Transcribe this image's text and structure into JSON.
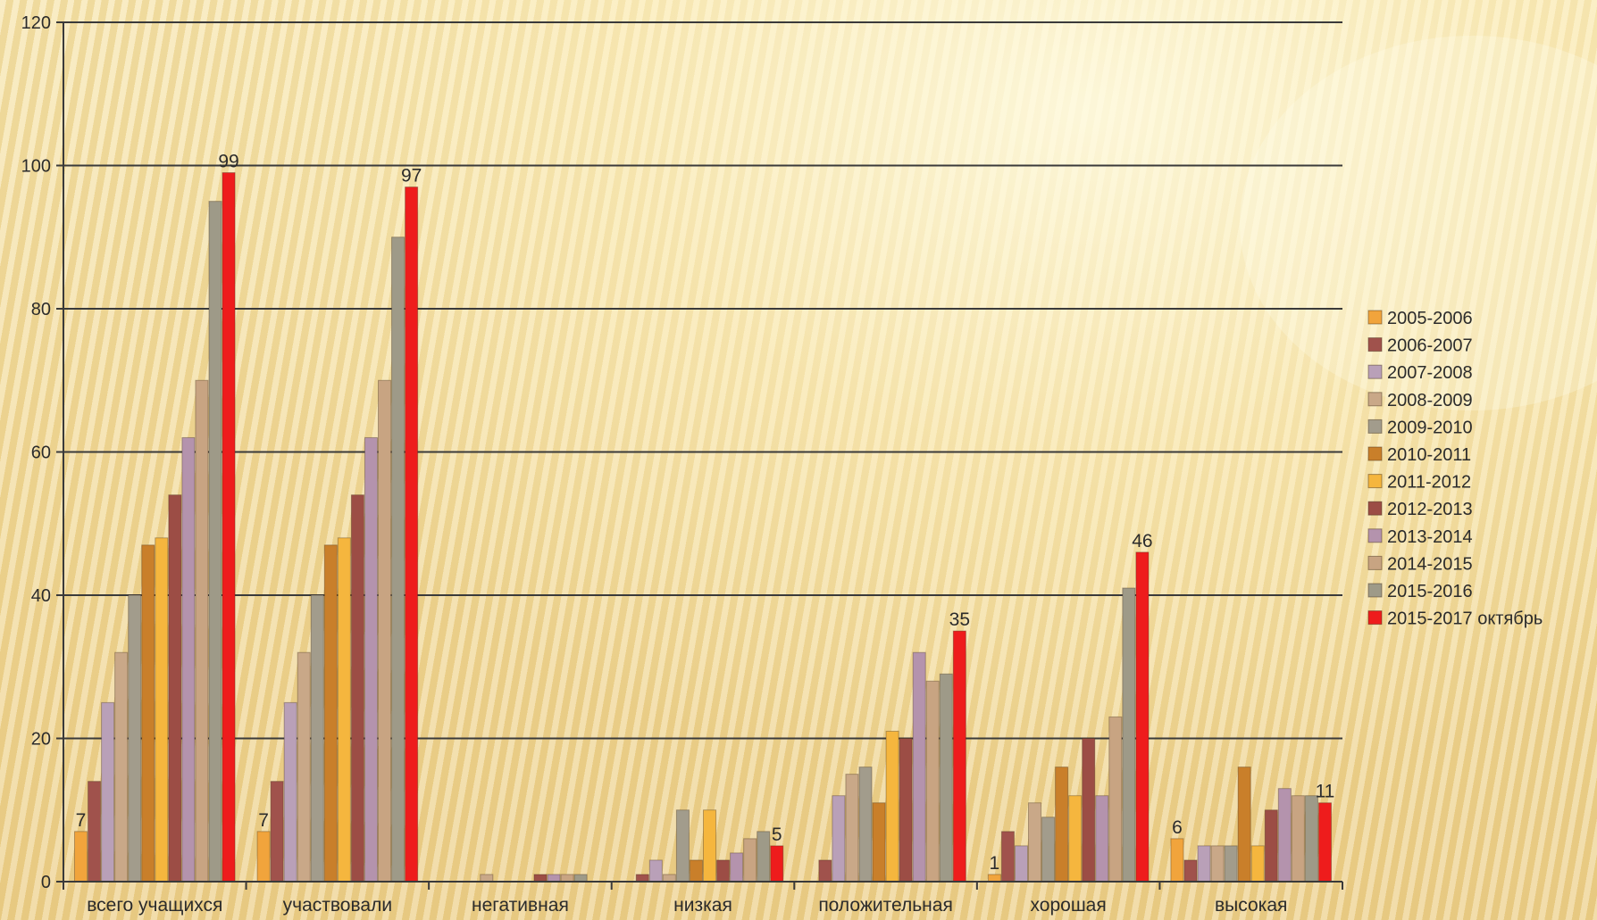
{
  "chart_data": {
    "type": "bar",
    "title": "",
    "xlabel": "",
    "ylabel": "",
    "ylim": [
      0,
      120
    ],
    "yticks": [
      0,
      20,
      40,
      60,
      80,
      100,
      120
    ],
    "grid": true,
    "legend_position": "right",
    "categories": [
      "всего учащихся",
      "участвовали",
      "негативная",
      "низкая",
      "положительная",
      "хорошая",
      "высокая"
    ],
    "series": [
      {
        "name": "2005-2006",
        "color": "#f1a43c",
        "values": [
          7,
          7,
          0,
          0,
          0,
          1,
          6
        ]
      },
      {
        "name": "2006-2007",
        "color": "#a0524c",
        "values": [
          14,
          14,
          0,
          1,
          3,
          7,
          3
        ]
      },
      {
        "name": "2007-2008",
        "color": "#b9a0b8",
        "values": [
          25,
          25,
          0,
          3,
          12,
          5,
          5
        ]
      },
      {
        "name": "2008-2009",
        "color": "#c9a888",
        "values": [
          32,
          32,
          1,
          1,
          15,
          11,
          5
        ]
      },
      {
        "name": "2009-2010",
        "color": "#a29c8c",
        "values": [
          40,
          40,
          0,
          10,
          16,
          9,
          5
        ]
      },
      {
        "name": "2010-2011",
        "color": "#c97f2a",
        "values": [
          47,
          47,
          0,
          3,
          11,
          16,
          16
        ]
      },
      {
        "name": "2011-2012",
        "color": "#f5b63e",
        "values": [
          48,
          48,
          0,
          10,
          21,
          12,
          5
        ]
      },
      {
        "name": "2012-2013",
        "color": "#9c4d45",
        "values": [
          54,
          54,
          1,
          3,
          20,
          20,
          10
        ]
      },
      {
        "name": "2013-2014",
        "color": "#b493ad",
        "values": [
          62,
          62,
          1,
          4,
          32,
          12,
          13
        ]
      },
      {
        "name": "2014-2015",
        "color": "#c8a482",
        "values": [
          70,
          70,
          1,
          6,
          28,
          23,
          12
        ]
      },
      {
        "name": "2015-2016",
        "color": "#9e9a88",
        "values": [
          95,
          90,
          1,
          7,
          29,
          41,
          12
        ]
      },
      {
        "name": "2015-2017 октябрь",
        "color": "#ee1c1c",
        "values": [
          99,
          97,
          0,
          5,
          35,
          46,
          11
        ]
      }
    ],
    "data_labels": [
      {
        "category": "всего учащихся",
        "series": "2005-2006",
        "text": "7"
      },
      {
        "category": "всего учащихся",
        "series": "2015-2017 октябрь",
        "text": "99"
      },
      {
        "category": "участвовали",
        "series": "2005-2006",
        "text": "7"
      },
      {
        "category": "участвовали",
        "series": "2015-2017 октябрь",
        "text": "97"
      },
      {
        "category": "низкая",
        "series": "2015-2017 октябрь",
        "text": "5"
      },
      {
        "category": "положительная",
        "series": "2015-2017 октябрь",
        "text": "35"
      },
      {
        "category": "хорошая",
        "series": "2005-2006",
        "text": "1"
      },
      {
        "category": "хорошая",
        "series": "2015-2017 октябрь",
        "text": "46"
      },
      {
        "category": "высокая",
        "series": "2005-2006",
        "text": "6"
      },
      {
        "category": "высокая",
        "series": "2015-2017 октябрь",
        "text": "11"
      }
    ]
  }
}
